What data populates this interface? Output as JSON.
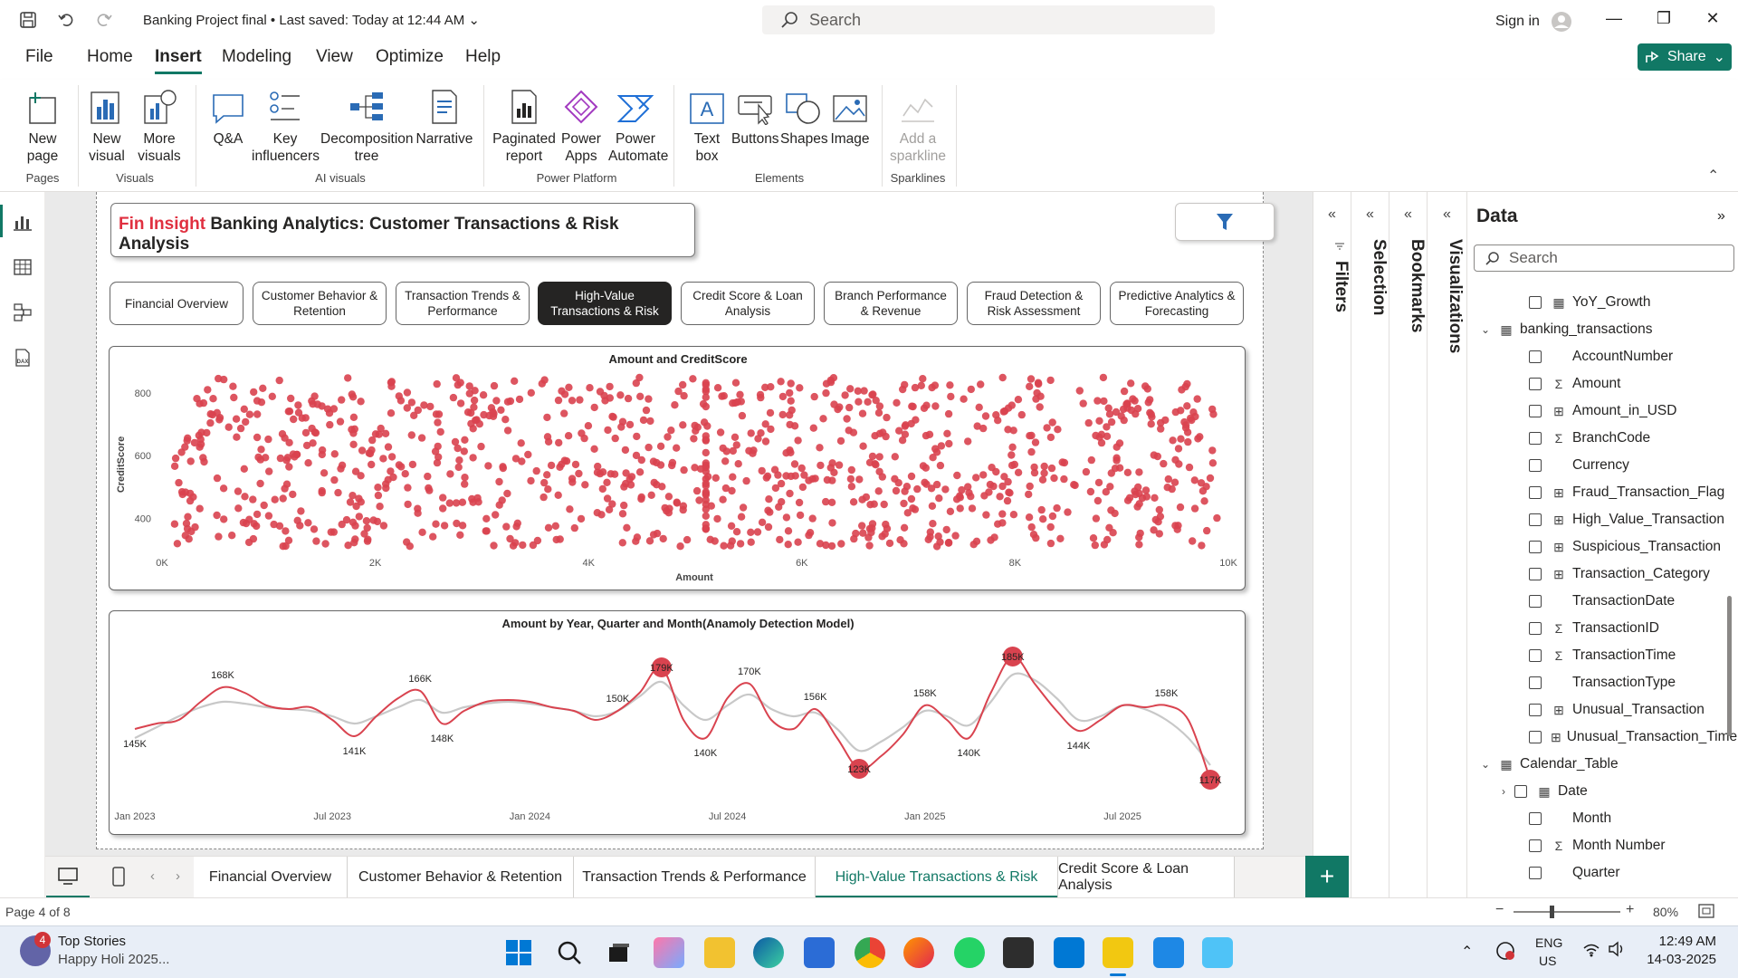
{
  "titlebar": {
    "doc_title": "Banking Project final  •  Last saved: Today at 12:44 AM",
    "search_placeholder": "Search",
    "signin_label": "Sign in"
  },
  "menu": {
    "tabs": [
      "File",
      "Home",
      "Insert",
      "Modeling",
      "View",
      "Optimize",
      "Help"
    ],
    "active_tab": "Insert",
    "share_label": "Share"
  },
  "ribbon": {
    "buttons": {
      "new_page": "New page",
      "new_visual": "New visual",
      "more_visuals": "More visuals",
      "qa": "Q&A",
      "key_influencers": "Key influencers",
      "decomposition_tree": "Decomposition tree",
      "narrative": "Narrative",
      "paginated_report": "Paginated report",
      "power_apps": "Power Apps",
      "power_automate": "Power Automate",
      "text_box": "Text box",
      "buttons": "Buttons",
      "shapes": "Shapes",
      "image": "Image",
      "add_sparkline": "Add a sparkline"
    },
    "groups": {
      "pages": "Pages",
      "visuals": "Visuals",
      "ai_visuals": "AI visuals",
      "power_platform": "Power Platform",
      "elements": "Elements",
      "sparklines": "Sparklines"
    }
  },
  "report": {
    "brand": "Fin Insight",
    "title": "Banking Analytics: Customer Transactions & Risk Analysis",
    "nav_buttons": [
      "Financial Overview",
      "Customer Behavior & Retention",
      "Transaction Trends & Performance",
      "High-Value Transactions & Risk",
      "Credit Score & Loan Analysis",
      "Branch Performance & Revenue",
      "Fraud Detection & Risk Assessment",
      "Predictive Analytics & Forecasting"
    ],
    "active_nav": 3
  },
  "chart_data": [
    {
      "type": "scatter",
      "title": "Amount and CreditScore",
      "xlabel": "Amount",
      "ylabel": "CreditScore",
      "xlim": [
        0,
        10000
      ],
      "ylim": [
        300,
        860
      ],
      "x_ticks": [
        "0K",
        "2K",
        "4K",
        "6K",
        "8K",
        "10K"
      ],
      "y_ticks": [
        "400",
        "600",
        "800"
      ],
      "point_color": "#d9434f",
      "point_count_approx": 1000,
      "note_distribution": "uniform across x 100-9900 and y 300-850"
    },
    {
      "type": "line",
      "title": "Amount by Year, Quarter and Month(Anamoly Detection Model)",
      "x_ticks": [
        "Jan 2023",
        "Jul 2023",
        "Jan 2024",
        "Jul 2024",
        "Jan 2025",
        "Jul 2025"
      ],
      "series": [
        {
          "color": "#d9434f",
          "values": [
            145,
            148,
            150,
            160,
            168,
            165,
            158,
            156,
            157,
            150,
            141,
            152,
            162,
            166,
            148,
            155,
            160,
            161,
            160,
            157,
            155,
            150,
            155,
            165,
            179,
            150,
            140,
            162,
            170,
            150,
            145,
            156,
            140,
            123,
            130,
            142,
            158,
            150,
            140,
            165,
            185,
            170,
            155,
            144,
            150,
            158,
            157,
            158,
            150,
            117
          ],
          "labels": {
            "0": "145K",
            "4": "168K",
            "10": "141K",
            "13": "166K",
            "14": "148K",
            "22": "150K",
            "24": "179K",
            "26": "140K",
            "28": "170K",
            "31": "156K",
            "33": "123K",
            "36": "158K",
            "38": "140K",
            "40": "185K",
            "43": "144K",
            "47": "158K",
            "49": "117K"
          },
          "anomalies": [
            24,
            33,
            40,
            49
          ]
        },
        {
          "color": "#c8c8c8",
          "values": [
            140,
            146,
            152,
            157,
            160,
            159,
            157,
            156,
            155,
            152,
            148,
            152,
            157,
            161,
            154,
            157,
            159,
            160,
            159,
            157,
            155,
            152,
            155,
            163,
            171,
            158,
            150,
            158,
            164,
            156,
            152,
            154,
            145,
            133,
            138,
            146,
            155,
            152,
            147,
            160,
            175,
            172,
            162,
            150,
            152,
            158,
            156,
            150,
            140,
            125
          ]
        }
      ]
    }
  ],
  "panes": {
    "filters": "Filters",
    "selection": "Selection",
    "bookmarks": "Bookmarks",
    "visualizations": "Visualizations",
    "data_title": "Data",
    "data_search_placeholder": "Search"
  },
  "fields": [
    {
      "name": "YoY_Growth",
      "type": "calc",
      "indent": 2
    },
    {
      "name": "banking_transactions",
      "type": "table",
      "indent": 0,
      "expander": "⌄"
    },
    {
      "name": "AccountNumber",
      "type": "",
      "indent": 2
    },
    {
      "name": "Amount",
      "type": "sigma",
      "indent": 2
    },
    {
      "name": "Amount_in_USD",
      "type": "calccol",
      "indent": 2
    },
    {
      "name": "BranchCode",
      "type": "sigma",
      "indent": 2
    },
    {
      "name": "Currency",
      "type": "",
      "indent": 2
    },
    {
      "name": "Fraud_Transaction_Flag",
      "type": "calccol",
      "indent": 2
    },
    {
      "name": "High_Value_Transaction",
      "type": "calccol",
      "indent": 2
    },
    {
      "name": "Suspicious_Transaction",
      "type": "calccol",
      "indent": 2
    },
    {
      "name": "Transaction_Category",
      "type": "calccol",
      "indent": 2
    },
    {
      "name": "TransactionDate",
      "type": "",
      "indent": 2
    },
    {
      "name": "TransactionID",
      "type": "sigma",
      "indent": 2
    },
    {
      "name": "TransactionTime",
      "type": "sigma",
      "indent": 2
    },
    {
      "name": "TransactionType",
      "type": "",
      "indent": 2
    },
    {
      "name": "Unusual_Transaction",
      "type": "calccol",
      "indent": 2
    },
    {
      "name": "Unusual_Transaction_Time",
      "type": "calccol",
      "indent": 2
    },
    {
      "name": "Calendar_Table",
      "type": "table",
      "indent": 0,
      "expander": "⌄"
    },
    {
      "name": "Date",
      "type": "calendar",
      "indent": 1,
      "expander": "›"
    },
    {
      "name": "Month",
      "type": "",
      "indent": 2
    },
    {
      "name": "Month Number",
      "type": "sigma",
      "indent": 2
    },
    {
      "name": "Quarter",
      "type": "",
      "indent": 2
    }
  ],
  "page_tabs": [
    "Financial Overview",
    "Customer Behavior & Retention",
    "Transaction Trends & Performance",
    "High-Value Transactions & Risk",
    "Credit Score & Loan Analysis"
  ],
  "active_page_tab": 3,
  "status": {
    "page_indicator": "Page 4 of 8",
    "zoom": "80%"
  },
  "taskbar": {
    "news_badge": "4",
    "news_title": "Top Stories",
    "news_sub": "Happy Holi 2025...",
    "lang1": "ENG",
    "lang2": "US",
    "time": "12:49 AM",
    "date": "14-03-2025"
  }
}
